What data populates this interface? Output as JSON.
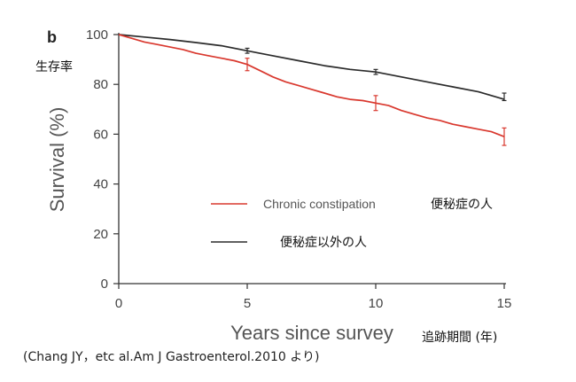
{
  "chart_data": {
    "type": "line",
    "panel_label": "b",
    "xlabel": "Years since survey",
    "ylabel": "Survival (%)",
    "xlim": [
      0,
      15
    ],
    "ylim": [
      0,
      100
    ],
    "x_ticks": [
      0,
      5,
      10,
      15
    ],
    "y_ticks": [
      0,
      20,
      40,
      60,
      80,
      100
    ],
    "grid": false,
    "legend_position": "center-right",
    "series": [
      {
        "name": "Chronic constipation",
        "jp_name": "便秘症の人",
        "color": "#d9382e",
        "x": [
          0,
          0.5,
          1,
          1.5,
          2,
          2.5,
          3,
          3.5,
          4,
          4.5,
          5,
          5.5,
          6,
          6.5,
          7,
          7.5,
          8,
          8.5,
          9,
          9.5,
          10,
          10.5,
          11,
          11.5,
          12,
          12.5,
          13,
          13.5,
          14,
          14.5,
          15
        ],
        "y": [
          100,
          98.5,
          97,
          96,
          95,
          94,
          92.5,
          91.5,
          90.5,
          89.5,
          88,
          85.5,
          83,
          81,
          79.5,
          78,
          76.5,
          75,
          74,
          73.5,
          72.5,
          71.5,
          69.5,
          68,
          66.5,
          65.5,
          64,
          63,
          62,
          61,
          59
        ],
        "error_bars": [
          {
            "x": 5,
            "low": 85.5,
            "high": 90.5
          },
          {
            "x": 10,
            "low": 69.5,
            "high": 75.5
          },
          {
            "x": 15,
            "low": 55.5,
            "high": 62.5
          }
        ]
      },
      {
        "name": "便秘症以外の人",
        "color": "#2b2b2b",
        "x": [
          0,
          1,
          2,
          3,
          4,
          5,
          6,
          7,
          8,
          9,
          10,
          11,
          12,
          13,
          14,
          15
        ],
        "y": [
          100,
          99,
          98,
          96.8,
          95.5,
          93.5,
          91.5,
          89.5,
          87.5,
          86,
          85,
          83,
          81,
          79,
          77,
          74
        ],
        "error_bars": [
          {
            "x": 5,
            "low": 92.5,
            "high": 94.5
          },
          {
            "x": 10,
            "low": 84,
            "high": 86
          },
          {
            "x": 15,
            "low": 73.5,
            "high": 76.5
          }
        ]
      }
    ]
  },
  "annotations": {
    "y_jp": "生存率",
    "x_jp": "追跡期間 (年)"
  },
  "source": "(Chang JY，etc al.Am J Gastroenterol.2010 より)"
}
